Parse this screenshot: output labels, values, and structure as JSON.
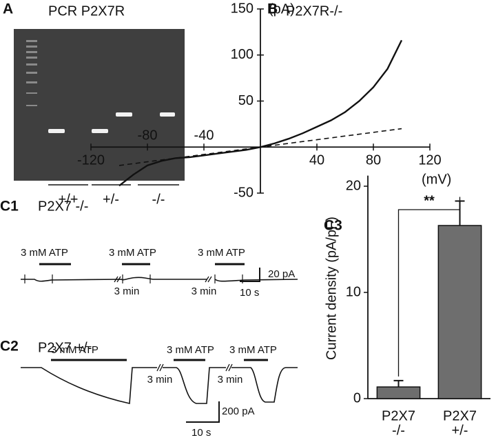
{
  "panel_labels": [
    "A",
    "B",
    "C1",
    "C2",
    "C3"
  ],
  "gel": {
    "title": "PCR P2X7R",
    "lanes": [
      "+/+",
      "+/-",
      "-/-"
    ]
  },
  "traces": {
    "c1": {
      "label": "P2X7 -/-",
      "stimulus": [
        "3 mM ATP",
        "3 mM ATP",
        "3 mM ATP"
      ],
      "gaps": [
        "3 min",
        "3 min"
      ],
      "scale_y": "20 pA",
      "scale_x": "10 s"
    },
    "c2": {
      "label": "P2X7 +/-",
      "stimulus": [
        "3 mM ATP",
        "3 mM ATP",
        "3 mM ATP"
      ],
      "gaps": [
        "3 min",
        "3 min"
      ],
      "scale_y": "200 pA",
      "scale_x": "10 s"
    }
  },
  "chart_data": [
    {
      "type": "line",
      "title": "P2X7R-/-",
      "x_label": "(mV)",
      "y_label": "(pA)",
      "x": [
        -100,
        -90,
        -80,
        -70,
        -60,
        -50,
        -40,
        -30,
        -20,
        -10,
        0,
        10,
        20,
        30,
        40,
        50,
        60,
        70,
        80,
        90,
        100
      ],
      "series": [
        {
          "color": "#111111",
          "values": [
            -42,
            -30,
            -20,
            -15,
            -12,
            -11,
            -9,
            -7,
            -5,
            -3,
            0,
            4,
            9,
            15,
            22,
            29,
            38,
            50,
            65,
            85,
            116
          ]
        },
        {
          "color": "#111111",
          "dashed": true,
          "values": [
            -20,
            -18,
            -16,
            -14,
            -12,
            -10,
            -8,
            -6,
            -4,
            -2,
            0,
            2,
            4,
            6,
            8,
            10,
            12,
            14,
            16,
            18,
            20
          ]
        }
      ],
      "xlim": [
        -120,
        120
      ],
      "ylim": [
        -50,
        150
      ],
      "xticks": [
        -120,
        -80,
        -40,
        40,
        80,
        120
      ],
      "yticks": [
        -50,
        50,
        100,
        150
      ]
    },
    {
      "type": "bar",
      "y_label": "Current density (pA/pF)",
      "categories": [
        [
          "P2X7",
          "-/-"
        ],
        [
          "P2X7",
          "+/-"
        ]
      ],
      "values": [
        1.1,
        16.3
      ],
      "errors": [
        0.6,
        2.3
      ],
      "color": "#6e6e6e",
      "ylim": [
        0,
        21
      ],
      "yticks": [
        0,
        10,
        20
      ],
      "significance": "**"
    }
  ]
}
